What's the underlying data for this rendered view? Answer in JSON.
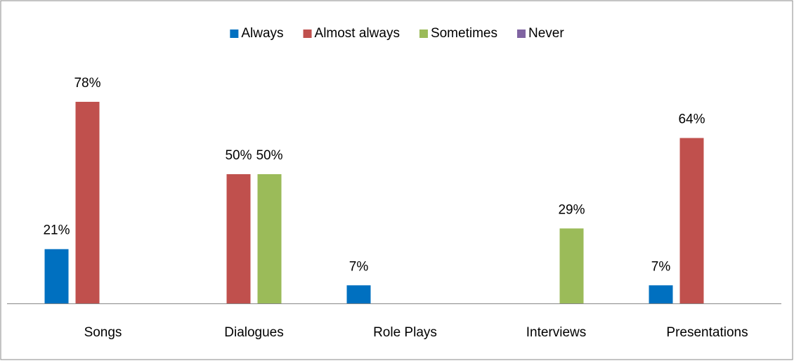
{
  "chart_data": {
    "type": "bar",
    "categories": [
      "Songs",
      "Dialogues",
      "Role Plays",
      "Interviews",
      "Presentations"
    ],
    "series": [
      {
        "name": "Always",
        "color": "#0070c0",
        "values": [
          21,
          null,
          7,
          null,
          7
        ],
        "value_labels": [
          "21%",
          null,
          "7%",
          null,
          "7%"
        ]
      },
      {
        "name": "Almost always",
        "color": "#c0504d",
        "values": [
          78,
          50,
          null,
          null,
          64
        ],
        "value_labels": [
          "78%",
          "50%",
          null,
          null,
          "64%"
        ]
      },
      {
        "name": "Sometimes",
        "color": "#9bbb59",
        "values": [
          null,
          50,
          null,
          29,
          null
        ],
        "value_labels": [
          null,
          "50%",
          null,
          "29%",
          null
        ]
      },
      {
        "name": "Never",
        "color": "#8064a2",
        "values": [
          null,
          null,
          null,
          null,
          null
        ],
        "value_labels": [
          null,
          null,
          null,
          null,
          null
        ]
      }
    ],
    "ylim": [
      0,
      100
    ],
    "legend": "top"
  }
}
